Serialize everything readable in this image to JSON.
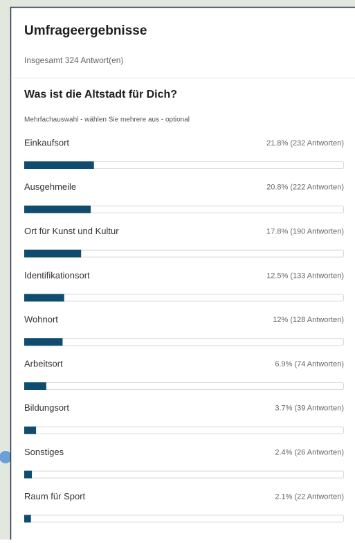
{
  "header": {
    "title": "Umfrageergebnisse",
    "total": "Insgesamt 324 Antwort(en)"
  },
  "chart_data": {
    "type": "bar",
    "orientation": "horizontal",
    "title": "Was ist die Altstadt für Dich?",
    "subtitle": "Mehrfachauswahl - wählen Sie mehrere aus - optional",
    "categories": [
      "Einkaufsort",
      "Ausgehmeile",
      "Ort für Kunst und Kultur",
      "Identifikationsort",
      "Wohnort",
      "Arbeitsort",
      "Bildungsort",
      "Sonstiges",
      "Raum für Sport"
    ],
    "values": [
      21.8,
      20.8,
      17.8,
      12.5,
      12,
      6.9,
      3.7,
      2.4,
      2.1
    ],
    "value_labels": [
      "21.8% (232 Antworten)",
      "20.8% (222 Antworten)",
      "17.8% (190 Antworten)",
      "12.5% (133 Antworten)",
      "12% (128 Antworten)",
      "6.9% (74 Antworten)",
      "3.7% (39 Antworten)",
      "2.4% (26 Antworten)",
      "2.1% (22 Antworten)"
    ],
    "xlim": [
      0,
      100
    ],
    "color": "#0f4c6e"
  }
}
